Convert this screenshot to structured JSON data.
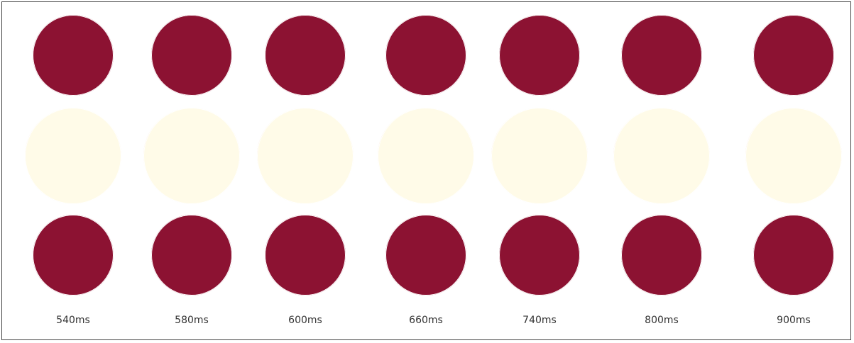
{
  "columns": [
    {
      "label": "540ms"
    },
    {
      "label": "580ms"
    },
    {
      "label": "600ms"
    },
    {
      "label": "660ms"
    },
    {
      "label": "740ms"
    },
    {
      "label": "800ms"
    },
    {
      "label": "900ms"
    }
  ]
}
